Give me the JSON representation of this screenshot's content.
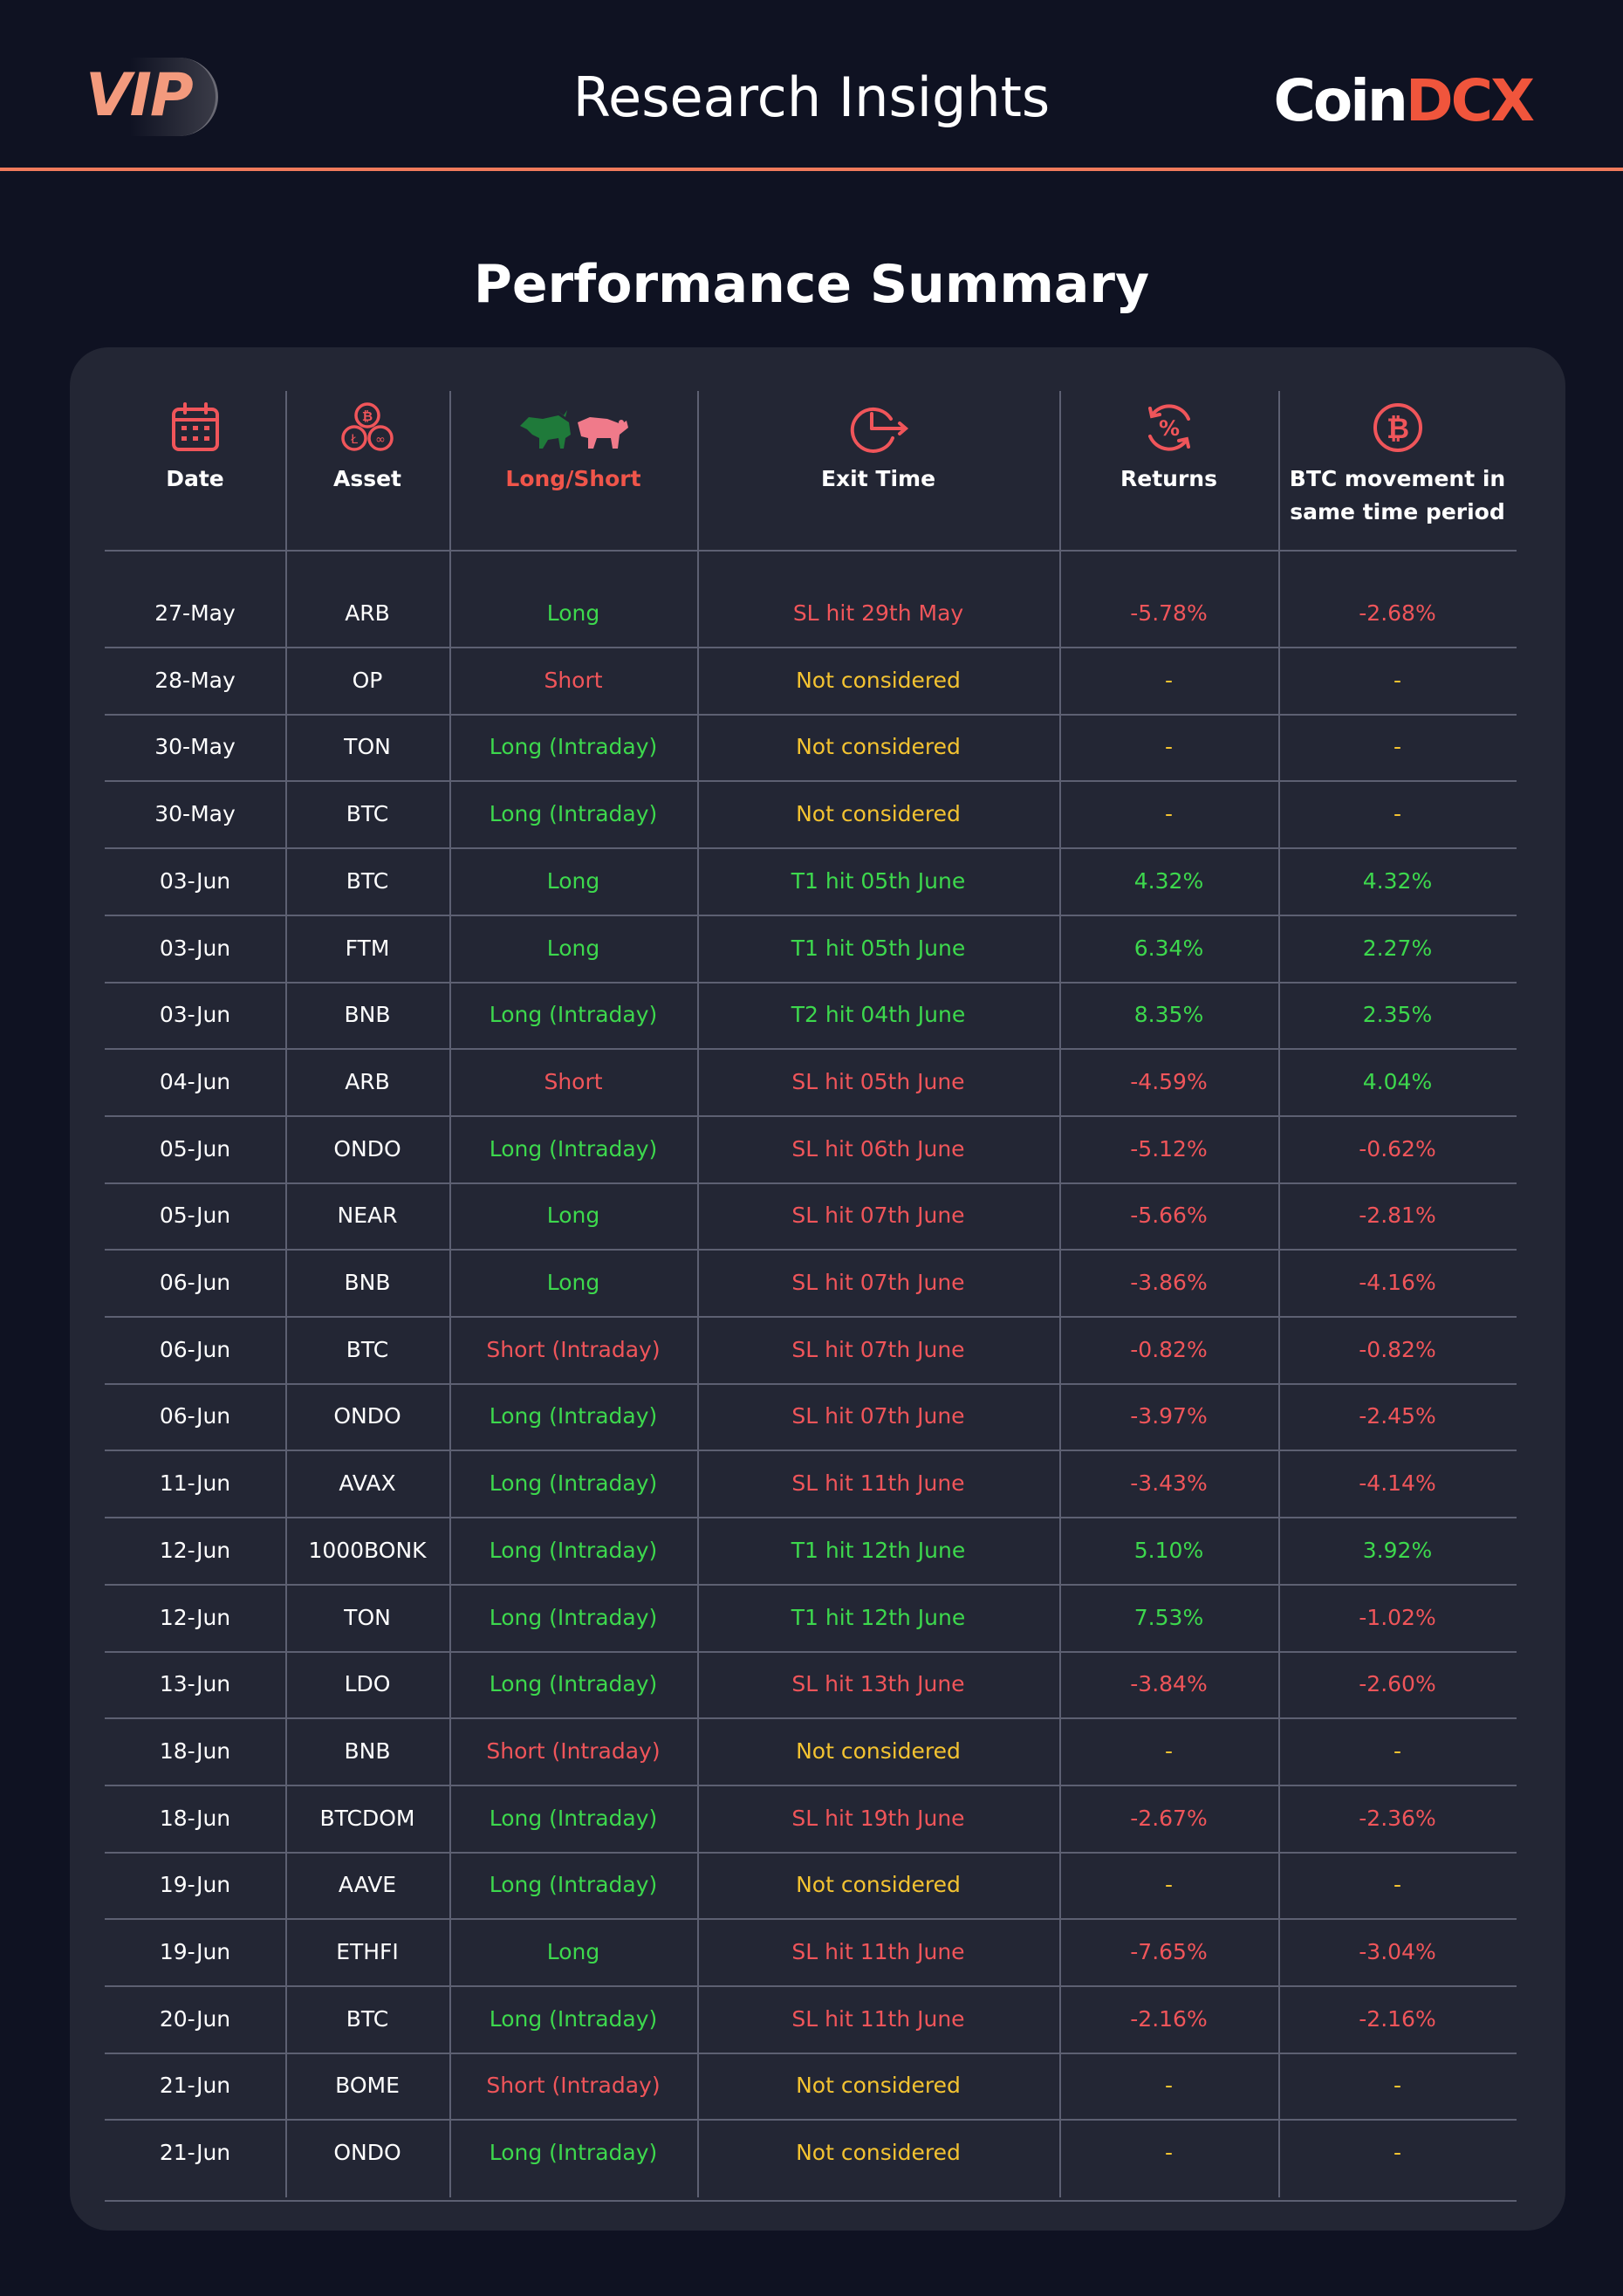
{
  "header": {
    "vip": "VIP",
    "title": "Research Insights",
    "brand_part1": "Coin",
    "brand_part2": "DCX"
  },
  "section_title": "Performance Summary",
  "columns": [
    {
      "label": "Date",
      "icon": "calendar-icon"
    },
    {
      "label": "Asset",
      "icon": "crypto-coins-icon"
    },
    {
      "label": "Long/Short",
      "icon": "bull-bear-icon"
    },
    {
      "label": "Exit Time",
      "icon": "clock-arrow-icon"
    },
    {
      "label": "Returns",
      "icon": "percent-cycle-icon"
    },
    {
      "label": "BTC movement in same time period",
      "icon": "bitcoin-icon"
    }
  ],
  "colors": {
    "green": "#3dd84d",
    "red": "#f0555a",
    "yellow": "#f4c331",
    "accent": "#f07a5c"
  },
  "rows": [
    {
      "date": "27-May",
      "asset": "ARB",
      "position": "Long",
      "exit": "SL hit 29th May",
      "returns": "-5.78%",
      "btc": "-2.68%"
    },
    {
      "date": "28-May",
      "asset": "OP",
      "position": "Short",
      "exit": "Not considered",
      "returns": "-",
      "btc": "-"
    },
    {
      "date": "30-May",
      "asset": "TON",
      "position": "Long (Intraday)",
      "exit": "Not considered",
      "returns": "-",
      "btc": "-"
    },
    {
      "date": "30-May",
      "asset": "BTC",
      "position": "Long (Intraday)",
      "exit": "Not considered",
      "returns": "-",
      "btc": "-"
    },
    {
      "date": "03-Jun",
      "asset": "BTC",
      "position": "Long",
      "exit": "T1 hit 05th June",
      "returns": "4.32%",
      "btc": "4.32%"
    },
    {
      "date": "03-Jun",
      "asset": "FTM",
      "position": "Long",
      "exit": "T1 hit 05th June",
      "returns": "6.34%",
      "btc": "2.27%"
    },
    {
      "date": "03-Jun",
      "asset": "BNB",
      "position": "Long (Intraday)",
      "exit": "T2 hit 04th June",
      "returns": "8.35%",
      "btc": "2.35%"
    },
    {
      "date": "04-Jun",
      "asset": "ARB",
      "position": "Short",
      "exit": "SL hit 05th June",
      "returns": "-4.59%",
      "btc": "4.04%"
    },
    {
      "date": "05-Jun",
      "asset": "ONDO",
      "position": "Long (Intraday)",
      "exit": "SL hit 06th June",
      "returns": "-5.12%",
      "btc": "-0.62%"
    },
    {
      "date": "05-Jun",
      "asset": "NEAR",
      "position": "Long",
      "exit": "SL hit 07th June",
      "returns": "-5.66%",
      "btc": "-2.81%"
    },
    {
      "date": "06-Jun",
      "asset": "BNB",
      "position": "Long",
      "exit": "SL hit 07th June",
      "returns": "-3.86%",
      "btc": "-4.16%"
    },
    {
      "date": "06-Jun",
      "asset": "BTC",
      "position": "Short (Intraday)",
      "exit": "SL hit 07th June",
      "returns": "-0.82%",
      "btc": "-0.82%"
    },
    {
      "date": "06-Jun",
      "asset": "ONDO",
      "position": "Long (Intraday)",
      "exit": "SL hit 07th June",
      "returns": "-3.97%",
      "btc": "-2.45%"
    },
    {
      "date": "11-Jun",
      "asset": "AVAX",
      "position": "Long (Intraday)",
      "exit": "SL hit 11th June",
      "returns": "-3.43%",
      "btc": "-4.14%"
    },
    {
      "date": "12-Jun",
      "asset": "1000BONK",
      "position": "Long (Intraday)",
      "exit": "T1 hit 12th June",
      "returns": "5.10%",
      "btc": "3.92%"
    },
    {
      "date": "12-Jun",
      "asset": "TON",
      "position": "Long (Intraday)",
      "exit": "T1 hit 12th June",
      "returns": "7.53%",
      "btc": "-1.02%"
    },
    {
      "date": "13-Jun",
      "asset": "LDO",
      "position": "Long (Intraday)",
      "exit": "SL hit 13th June",
      "returns": "-3.84%",
      "btc": "-2.60%"
    },
    {
      "date": "18-Jun",
      "asset": "BNB",
      "position": "Short (Intraday)",
      "exit": "Not considered",
      "returns": "-",
      "btc": "-"
    },
    {
      "date": "18-Jun",
      "asset": "BTCDOM",
      "position": "Long (Intraday)",
      "exit": "SL hit 19th June",
      "returns": "-2.67%",
      "btc": "-2.36%"
    },
    {
      "date": "19-Jun",
      "asset": "AAVE",
      "position": "Long (Intraday)",
      "exit": "Not considered",
      "returns": "-",
      "btc": "-"
    },
    {
      "date": "19-Jun",
      "asset": "ETHFI",
      "position": "Long",
      "exit": "SL hit 11th June",
      "returns": "-7.65%",
      "btc": "-3.04%"
    },
    {
      "date": "20-Jun",
      "asset": "BTC",
      "position": "Long (Intraday)",
      "exit": "SL hit 11th June",
      "returns": "-2.16%",
      "btc": "-2.16%"
    },
    {
      "date": "21-Jun",
      "asset": "BOME",
      "position": "Short (Intraday)",
      "exit": "Not considered",
      "returns": "-",
      "btc": "-"
    },
    {
      "date": "21-Jun",
      "asset": "ONDO",
      "position": "Long (Intraday)",
      "exit": "Not considered",
      "returns": "-",
      "btc": "-"
    }
  ]
}
